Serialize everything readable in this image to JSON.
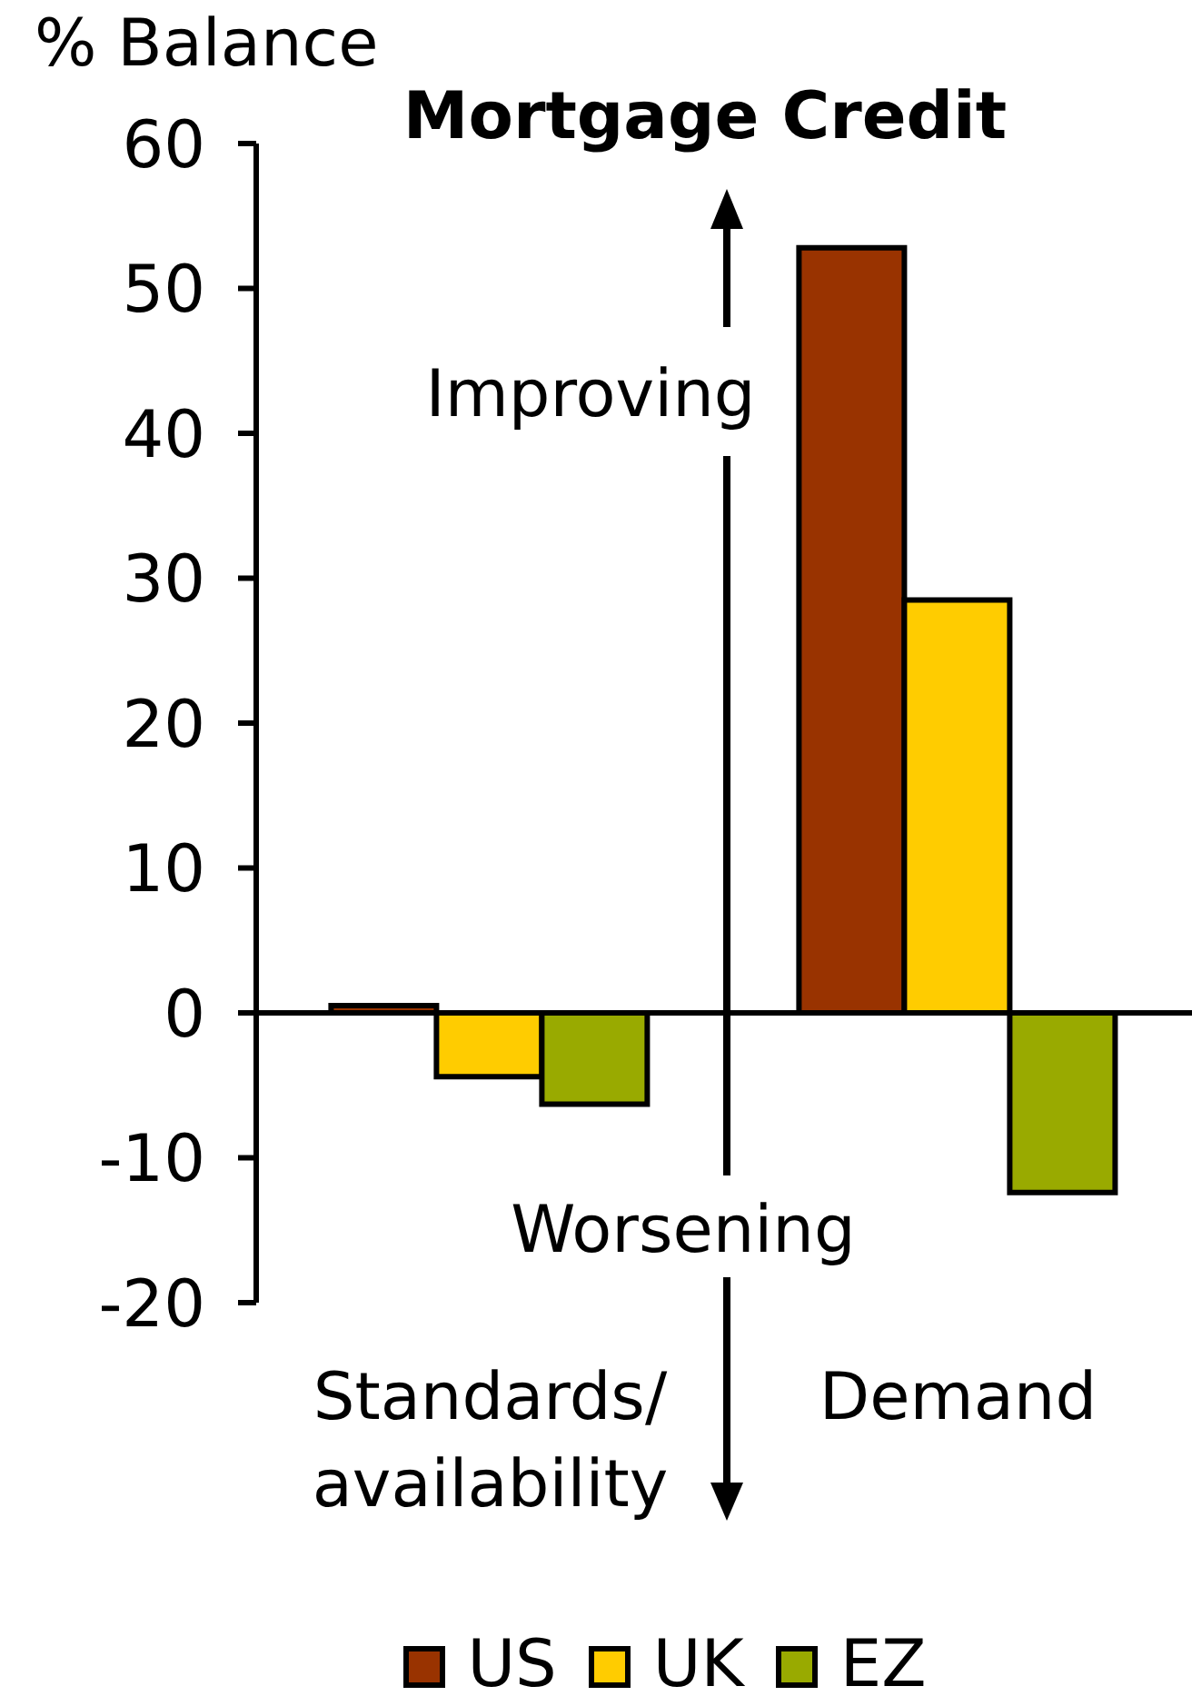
{
  "chart_data": {
    "type": "bar",
    "title": "Mortgage Credit",
    "ylabel": "% Balance",
    "categories": [
      "Standards/ availability",
      "Demand"
    ],
    "series": [
      {
        "name": "US",
        "color": "#993300",
        "values": [
          0.5,
          52.8
        ]
      },
      {
        "name": "UK",
        "color": "#ffcc00",
        "values": [
          -4.4,
          28.5
        ]
      },
      {
        "name": "EZ",
        "color": "#99aa00",
        "values": [
          -6.3,
          -12.4
        ]
      }
    ],
    "ylim": [
      -20,
      60
    ],
    "yticks": [
      -20,
      -10,
      0,
      10,
      20,
      30,
      40,
      50,
      60
    ],
    "legend": "bottom",
    "annotations": [
      "Improving",
      "Worsening"
    ]
  }
}
